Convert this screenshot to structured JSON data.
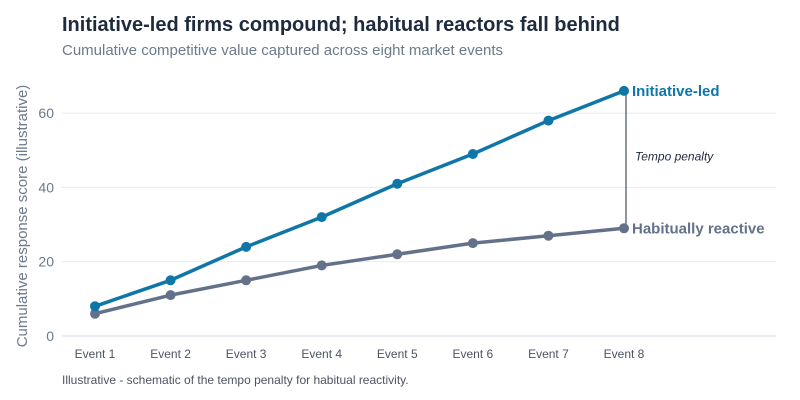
{
  "title": "Initiative-led firms compound; habitual reactors fall behind",
  "subtitle": "Cumulative competitive value captured across eight market events",
  "footnote": "Illustrative - schematic of the tempo penalty for habitual reactivity.",
  "chart_data": {
    "type": "line",
    "title": "Initiative-led firms compound; habitual reactors fall behind",
    "subtitle": "Cumulative competitive value captured across eight market events",
    "xlabel": "",
    "ylabel": "Cumulative response score (illustrative)",
    "categories": [
      "Event 1",
      "Event 2",
      "Event 3",
      "Event 4",
      "Event 5",
      "Event 6",
      "Event 7",
      "Event 8"
    ],
    "yticks": [
      0,
      20,
      40,
      60
    ],
    "ylim": [
      0,
      70
    ],
    "grid": "horizontal",
    "series": [
      {
        "name": "Initiative-led",
        "color": "#0f76a8",
        "values": [
          8,
          15,
          24,
          32,
          41,
          49,
          58,
          66
        ]
      },
      {
        "name": "Habitually reactive",
        "color": "#63728a",
        "values": [
          6,
          11,
          15,
          19,
          22,
          25,
          27,
          29
        ]
      }
    ],
    "annotations": [
      {
        "text": "Tempo penalty",
        "at": "Event 8",
        "between": [
          "Initiative-led",
          "Habitually reactive"
        ]
      }
    ]
  }
}
